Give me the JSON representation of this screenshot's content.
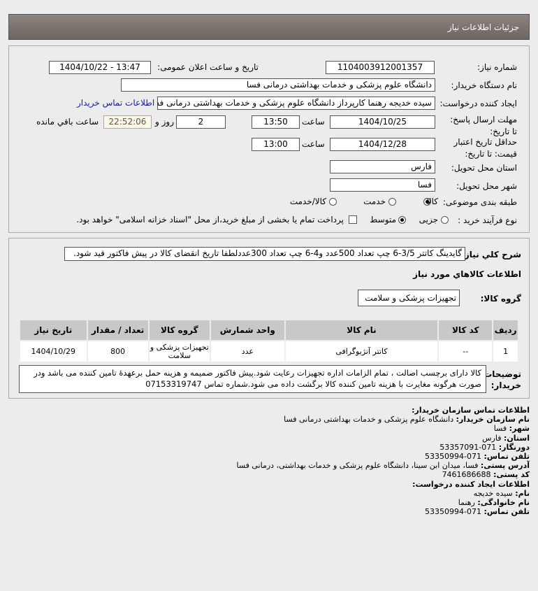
{
  "header": {
    "title": "جزئیات اطلاعات نیاز"
  },
  "form": {
    "need_number_label": "شماره نیاز:",
    "need_number": "1104003912001357",
    "announce_label": "تاریخ و ساعت اعلان عمومی:",
    "announce_value": "1404/10/22 - 13:47",
    "buyer_label": "نام دستگاه خریدار:",
    "buyer": "دانشگاه علوم پزشکی و خدمات بهداشتی درمانی فسا",
    "creator_label": "ایجاد کننده درخواست:",
    "creator": "سیده خدیجه رهنما کارپرداز دانشگاه علوم پزشکی و خدمات بهداشتی درمانی فسا",
    "contact_link": "اطلاعات تماس خریدار",
    "deadline_label": "مهلت ارسال پاسخ: تا تاریخ:",
    "deadline_date": "1404/10/25",
    "time_label": "ساعت",
    "deadline_time": "13:50",
    "days": "2",
    "days_label": "روز و",
    "countdown": "22:52:06",
    "remaining_label": "ساعت باقي مانده",
    "validity_label": "حداقل تاریخ اعتبار قیمت: تا تاریخ:",
    "validity_date": "1404/12/28",
    "validity_time": "13:00",
    "province_label": "استان محل تحویل:",
    "province": "فارس",
    "city_label": "شهر محل تحویل:",
    "city": "فسا",
    "category_label": "طبقه بندی موضوعی:",
    "category_options": [
      "کالا",
      "خدمت",
      "کالا/خدمت"
    ],
    "category_selected": "کالا",
    "process_label": "نوع فرآیند خرید :",
    "process_options": [
      "جزیی",
      "متوسط"
    ],
    "process_selected": "متوسط",
    "payment_note": "پرداخت تمام یا بخشی از مبلغ خرید،از محل \"اسناد خزانه اسلامی\" خواهد بود."
  },
  "details": {
    "desc_label": "شرح کلي نياز:",
    "desc": "گایدینگ کاتتر 3/5-6 چپ تعداد 500عدد و4-6 چپ تعداد 300عددلطفا تاریخ انقضای کالا در پیش فاکتور قید شود.",
    "goods_heading": "اطلاعات کالاهاي مورد نياز",
    "group_label": "گروه کالا:",
    "group": "تجهیزات پزشکی و سلامت",
    "table": {
      "headers": [
        "ردیف",
        "کد کالا",
        "نام کالا",
        "واحد شمارش",
        "گروه کالا",
        "تعداد / مقدار",
        "تاریخ نیاز"
      ],
      "rows": [
        [
          "1",
          "--",
          "کاتتر آنژیوگرافی",
          "عدد",
          "تجهیزات پزشکی و سلامت",
          "800",
          "1404/10/29"
        ]
      ]
    },
    "notes_label": "توضیحات خریدار:",
    "notes": "کالا دارای برچسب اصالت ، تمام الزامات اداره تجهیزات رعایت شود.پیش فاکتور ضمیمه و هزینه حمل برعهدهٔ تامین کننده می باشد ودر صورت هرگونه مغایرت با هزینه تامین کننده کالا برگشت داده می شود.شماره تماس 07153319747"
  },
  "contact": {
    "title": "اطلاعات تماس سازمان خریدار:",
    "org_label": "نام سازمان خریدار:",
    "org": "دانشگاه علوم پزشکی و خدمات بهداشتی درمانی فسا",
    "city_label": "شهر:",
    "city": "فسا",
    "province_label": "استان:",
    "province": "فارس",
    "fax_label": "دورنگار:",
    "fax": "071-53357091",
    "phone_label": "تلفن تماس:",
    "phone": "071-53350994",
    "address_label": "آدرس پستی:",
    "address": "فسا، میدان ابن سینا، دانشگاه علوم پزشکی و خدمات بهداشتی، درمانی فسا",
    "postal_label": "کد پستی:",
    "postal": "7461686688",
    "creator_title": "اطلاعات ایجاد کننده درخواست:",
    "name_label": "نام:",
    "name": "سیده خدیجه",
    "family_label": "نام خانوادگی:",
    "family": "رهنما",
    "creator_phone_label": "تلفن تماس:",
    "creator_phone": "071-53350994"
  }
}
